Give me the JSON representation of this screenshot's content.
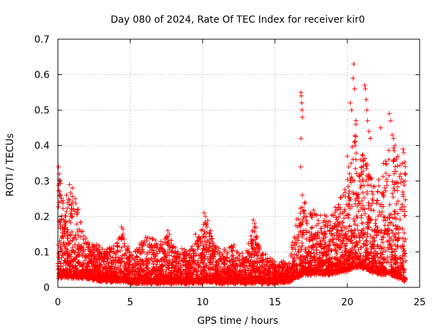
{
  "chart_data": {
    "type": "scatter",
    "title": "Day 080 of 2024, Rate Of TEC Index for receiver kir0",
    "xlabel": "GPS time / hours",
    "ylabel": "ROTI / TECUs",
    "xlim": [
      0,
      25
    ],
    "ylim": [
      0,
      0.7
    ],
    "x_ticks": [
      0,
      5,
      10,
      15,
      20,
      25
    ],
    "x_tick_labels": [
      "0",
      "5",
      "10",
      "15",
      "20",
      "25"
    ],
    "y_ticks": [
      0,
      0.1,
      0.2,
      0.3,
      0.4,
      0.5,
      0.6,
      0.7
    ],
    "y_tick_labels": [
      "0",
      "0.1",
      "0.2",
      "0.3",
      "0.4",
      "0.5",
      "0.6",
      "0.7"
    ],
    "grid": true,
    "marker": "+",
    "marker_color": "#ff0000",
    "series": [
      {
        "name": "ROTI",
        "profile": [
          {
            "x": 0.0,
            "base": 0.03,
            "peak": 0.35
          },
          {
            "x": 0.5,
            "base": 0.03,
            "peak": 0.22
          },
          {
            "x": 1.0,
            "base": 0.03,
            "peak": 0.29
          },
          {
            "x": 1.5,
            "base": 0.03,
            "peak": 0.2
          },
          {
            "x": 2.0,
            "base": 0.03,
            "peak": 0.13
          },
          {
            "x": 3.0,
            "base": 0.02,
            "peak": 0.11
          },
          {
            "x": 4.0,
            "base": 0.02,
            "peak": 0.12
          },
          {
            "x": 4.5,
            "base": 0.02,
            "peak": 0.17
          },
          {
            "x": 5.0,
            "base": 0.015,
            "peak": 0.09
          },
          {
            "x": 6.0,
            "base": 0.015,
            "peak": 0.14
          },
          {
            "x": 7.0,
            "base": 0.015,
            "peak": 0.13
          },
          {
            "x": 7.5,
            "base": 0.015,
            "peak": 0.16
          },
          {
            "x": 8.0,
            "base": 0.015,
            "peak": 0.12
          },
          {
            "x": 9.0,
            "base": 0.015,
            "peak": 0.1
          },
          {
            "x": 9.8,
            "base": 0.015,
            "peak": 0.15
          },
          {
            "x": 10.2,
            "base": 0.02,
            "peak": 0.21
          },
          {
            "x": 11.0,
            "base": 0.015,
            "peak": 0.11
          },
          {
            "x": 12.0,
            "base": 0.015,
            "peak": 0.12
          },
          {
            "x": 13.0,
            "base": 0.015,
            "peak": 0.1
          },
          {
            "x": 13.6,
            "base": 0.015,
            "peak": 0.19
          },
          {
            "x": 14.0,
            "base": 0.015,
            "peak": 0.1
          },
          {
            "x": 15.0,
            "base": 0.015,
            "peak": 0.07
          },
          {
            "x": 16.0,
            "base": 0.02,
            "peak": 0.07
          },
          {
            "x": 16.5,
            "base": 0.03,
            "peak": 0.2
          },
          {
            "x": 17.0,
            "base": 0.04,
            "peak": 0.25
          },
          {
            "x": 18.0,
            "base": 0.04,
            "peak": 0.2
          },
          {
            "x": 19.0,
            "base": 0.04,
            "peak": 0.21
          },
          {
            "x": 20.0,
            "base": 0.05,
            "peak": 0.3
          },
          {
            "x": 20.5,
            "base": 0.06,
            "peak": 0.45
          },
          {
            "x": 21.0,
            "base": 0.06,
            "peak": 0.4
          },
          {
            "x": 21.5,
            "base": 0.05,
            "peak": 0.33
          },
          {
            "x": 22.0,
            "base": 0.04,
            "peak": 0.3
          },
          {
            "x": 22.5,
            "base": 0.04,
            "peak": 0.33
          },
          {
            "x": 23.0,
            "base": 0.04,
            "peak": 0.45
          },
          {
            "x": 23.5,
            "base": 0.03,
            "peak": 0.35
          },
          {
            "x": 24.0,
            "base": 0.02,
            "peak": 0.38
          }
        ],
        "points": [
          [
            0.05,
            0.34
          ],
          [
            0.1,
            0.32
          ],
          [
            0.15,
            0.3
          ],
          [
            0.1,
            0.27
          ],
          [
            0.08,
            0.24
          ],
          [
            0.8,
            0.29
          ],
          [
            1.0,
            0.28
          ],
          [
            1.2,
            0.25
          ],
          [
            1.4,
            0.22
          ],
          [
            0.6,
            0.26
          ],
          [
            4.4,
            0.17
          ],
          [
            4.5,
            0.15
          ],
          [
            6.2,
            0.14
          ],
          [
            7.6,
            0.16
          ],
          [
            7.7,
            0.15
          ],
          [
            9.5,
            0.15
          ],
          [
            10.1,
            0.21
          ],
          [
            10.2,
            0.2
          ],
          [
            10.25,
            0.18
          ],
          [
            10.3,
            0.17
          ],
          [
            13.5,
            0.19
          ],
          [
            13.6,
            0.18
          ],
          [
            13.7,
            0.14
          ],
          [
            16.8,
            0.55
          ],
          [
            16.82,
            0.54
          ],
          [
            16.85,
            0.52
          ],
          [
            16.87,
            0.5
          ],
          [
            16.9,
            0.48
          ],
          [
            16.8,
            0.42
          ],
          [
            16.78,
            0.34
          ],
          [
            16.9,
            0.26
          ],
          [
            17.0,
            0.2
          ],
          [
            20.0,
            0.37
          ],
          [
            20.1,
            0.34
          ],
          [
            20.2,
            0.52
          ],
          [
            20.3,
            0.5
          ],
          [
            20.4,
            0.59
          ],
          [
            20.45,
            0.63
          ],
          [
            20.5,
            0.56
          ],
          [
            20.6,
            0.47
          ],
          [
            20.6,
            0.46
          ],
          [
            20.5,
            0.41
          ],
          [
            20.55,
            0.4
          ],
          [
            20.6,
            0.36
          ],
          [
            21.2,
            0.57
          ],
          [
            21.25,
            0.56
          ],
          [
            21.3,
            0.53
          ],
          [
            21.35,
            0.5
          ],
          [
            21.4,
            0.47
          ],
          [
            21.5,
            0.44
          ],
          [
            21.6,
            0.42
          ],
          [
            22.3,
            0.45
          ],
          [
            22.5,
            0.35
          ],
          [
            22.9,
            0.49
          ],
          [
            23.0,
            0.47
          ],
          [
            23.1,
            0.43
          ],
          [
            23.2,
            0.42
          ],
          [
            23.3,
            0.4
          ],
          [
            23.5,
            0.37
          ],
          [
            23.7,
            0.32
          ],
          [
            23.8,
            0.35
          ],
          [
            23.85,
            0.39
          ],
          [
            23.9,
            0.38
          ],
          [
            24.0,
            0.3
          ]
        ]
      }
    ]
  }
}
